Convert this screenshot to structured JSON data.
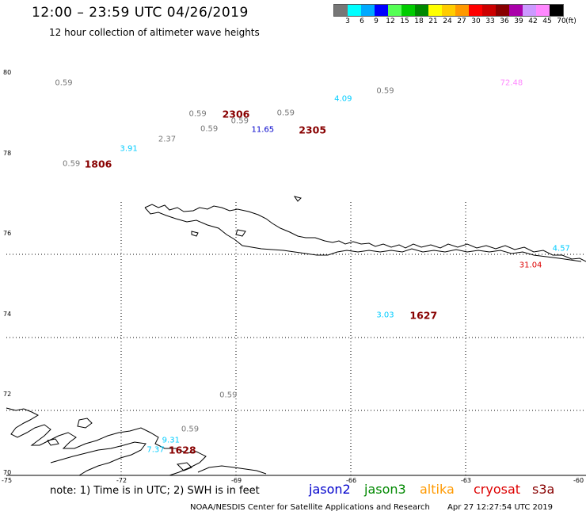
{
  "title": "12:00 – 23:59 UTC 04/26/2019",
  "subtitle": "12 hour collection of altimeter wave heights",
  "legend": {
    "unit": "(ft)",
    "ticks": [
      "3",
      "6",
      "9",
      "12",
      "15",
      "18",
      "21",
      "24",
      "27",
      "30",
      "33",
      "36",
      "39",
      "42",
      "45",
      "70"
    ],
    "colors": [
      "#777777",
      "#00ffff",
      "#00aaff",
      "#0000ff",
      "#55ff55",
      "#00cc00",
      "#008800",
      "#ffff00",
      "#ffcc00",
      "#ff9900",
      "#ff0000",
      "#cc0000",
      "#880000",
      "#aa00aa",
      "#cc99ff",
      "#ff88ff",
      "#000000"
    ]
  },
  "axes": {
    "lat_labels": [
      "80",
      "78",
      "76",
      "74",
      "72",
      "70"
    ],
    "lon_labels": [
      "-75",
      "-72",
      "-69",
      "-66",
      "-63",
      "-60"
    ]
  },
  "observations": [
    {
      "text": "0.59",
      "color": "#777777",
      "lon": -73.5,
      "lat": 79.74
    },
    {
      "text": "72.48",
      "color": "#ff88ff",
      "lon": -61.8,
      "lat": 79.74
    },
    {
      "text": "0.59",
      "color": "#777777",
      "lon": -65.1,
      "lat": 79.55
    },
    {
      "text": "4.09",
      "color": "#00ccff",
      "lon": -66.2,
      "lat": 79.36
    },
    {
      "text": "0.59",
      "color": "#777777",
      "lon": -70.0,
      "lat": 78.97
    },
    {
      "text": "0.59",
      "color": "#777777",
      "lon": -67.7,
      "lat": 79.0
    },
    {
      "text": "0.59",
      "color": "#777777",
      "lon": -68.9,
      "lat": 78.8
    },
    {
      "text": "0.59",
      "color": "#777777",
      "lon": -69.7,
      "lat": 78.6
    },
    {
      "text": "11.65",
      "color": "#0000cc",
      "lon": -68.3,
      "lat": 78.58
    },
    {
      "text": "2.37",
      "color": "#777777",
      "lon": -70.8,
      "lat": 78.34
    },
    {
      "text": "3.91",
      "color": "#00ccff",
      "lon": -71.8,
      "lat": 78.12
    },
    {
      "text": "0.59",
      "color": "#777777",
      "lon": -73.3,
      "lat": 77.74
    },
    {
      "text": "4.57",
      "color": "#00ccff",
      "lon": -60.5,
      "lat": 75.63
    },
    {
      "text": "31.04",
      "color": "#dd0000",
      "lon": -61.3,
      "lat": 75.21
    },
    {
      "text": "3.03",
      "color": "#00ccff",
      "lon": -65.1,
      "lat": 73.97
    },
    {
      "text": "0.59",
      "color": "#777777",
      "lon": -69.2,
      "lat": 71.98
    },
    {
      "text": "0.59",
      "color": "#777777",
      "lon": -70.2,
      "lat": 71.14
    },
    {
      "text": "9.31",
      "color": "#00ccff",
      "lon": -70.7,
      "lat": 70.87
    },
    {
      "text": "7.37",
      "color": "#00ccff",
      "lon": -71.1,
      "lat": 70.63
    }
  ],
  "time_labels": [
    {
      "text": "2306",
      "color": "#880000",
      "lon": -69.0,
      "lat": 78.97
    },
    {
      "text": "2305",
      "color": "#880000",
      "lon": -67.0,
      "lat": 78.58
    },
    {
      "text": "1806",
      "color": "#880000",
      "lon": -72.6,
      "lat": 77.74
    },
    {
      "text": "1627",
      "color": "#880000",
      "lon": -64.1,
      "lat": 73.97
    },
    {
      "text": "1628",
      "color": "#880000",
      "lon": -70.4,
      "lat": 70.63
    }
  ],
  "note": "note:  1) Time is in UTC;  2) SWH is in feet",
  "satellites": [
    {
      "name": "jason2",
      "color": "#0000cc"
    },
    {
      "name": "jason3",
      "color": "#008800"
    },
    {
      "name": "altika",
      "color": "#ff9900"
    },
    {
      "name": "cryosat",
      "color": "#dd0000"
    },
    {
      "name": "s3a",
      "color": "#880000"
    }
  ],
  "credit": "NOAA/NESDIS Center for Satellite Applications and Research",
  "timestamp": "Apr 27 12:27:54 UTC 2019"
}
